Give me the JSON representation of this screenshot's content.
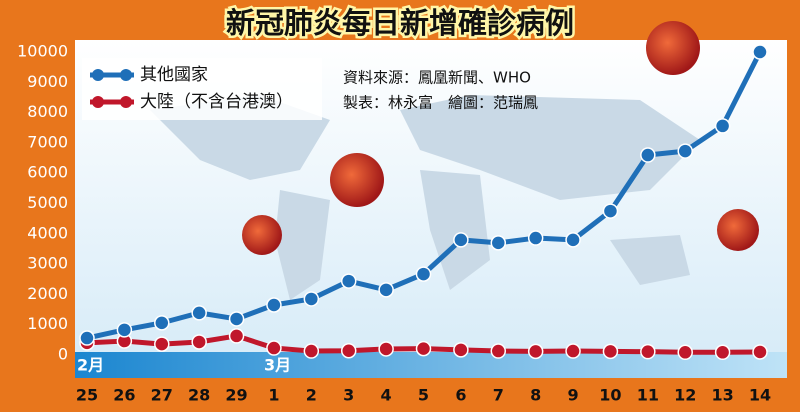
{
  "chart_data": {
    "type": "line",
    "title": "新冠肺炎每日新增確診病例",
    "notes": [
      "資料來源：鳳凰新聞、WHO",
      "製表：林永富　繪圖：范瑞鳳"
    ],
    "month_labels": [
      "2月",
      "3月"
    ],
    "categories": [
      "25",
      "26",
      "27",
      "28",
      "29",
      "1",
      "2",
      "3",
      "4",
      "5",
      "6",
      "7",
      "8",
      "9",
      "10",
      "11",
      "12",
      "13",
      "14"
    ],
    "series": [
      {
        "name": "其他國家",
        "color": "#1f6fb8",
        "values": [
          560,
          830,
          1060,
          1390,
          1190,
          1650,
          1850,
          2440,
          2150,
          2670,
          3800,
          3700,
          3860,
          3800,
          4750,
          6600,
          6730,
          7560,
          10000
        ]
      },
      {
        "name": "大陸（不含台港澳）",
        "color": "#c0172b",
        "values": [
          400,
          460,
          360,
          430,
          630,
          230,
          130,
          140,
          200,
          210,
          170,
          130,
          120,
          130,
          120,
          110,
          90,
          90,
          100
        ]
      }
    ],
    "ylim": [
      0,
      10000
    ],
    "yticks": [
      0,
      1000,
      2000,
      3000,
      4000,
      5000,
      6000,
      7000,
      8000,
      9000,
      10000
    ],
    "grid": false
  }
}
